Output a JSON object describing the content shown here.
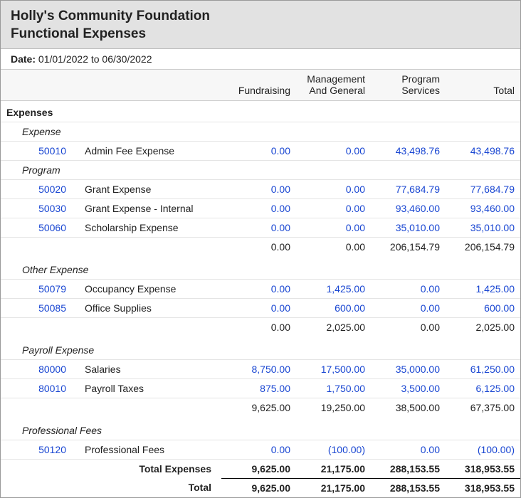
{
  "header": {
    "title1": "Holly's Community Foundation",
    "title2": "Functional Expenses",
    "date_label": "Date:",
    "date_range": "01/01/2022 to 06/30/2022"
  },
  "columns": {
    "fundraising": "Fundraising",
    "mgmt_line1": "Management",
    "mgmt_line2": "And General",
    "program_line1": "Program",
    "program_line2": "Services",
    "total": "Total"
  },
  "section_label": "Expenses",
  "groups": [
    {
      "label": "Expense",
      "rows": [
        {
          "code": "50010",
          "name": "Admin Fee Expense",
          "v": [
            "0.00",
            "0.00",
            "43,498.76",
            "43,498.76"
          ]
        }
      ],
      "subtotal": null
    },
    {
      "label": "Program",
      "rows": [
        {
          "code": "50020",
          "name": "Grant Expense",
          "v": [
            "0.00",
            "0.00",
            "77,684.79",
            "77,684.79"
          ]
        },
        {
          "code": "50030",
          "name": "Grant Expense - Internal",
          "v": [
            "0.00",
            "0.00",
            "93,460.00",
            "93,460.00"
          ]
        },
        {
          "code": "50060",
          "name": "Scholarship Expense",
          "v": [
            "0.00",
            "0.00",
            "35,010.00",
            "35,010.00"
          ]
        }
      ],
      "subtotal": [
        "0.00",
        "0.00",
        "206,154.79",
        "206,154.79"
      ]
    },
    {
      "label": "Other Expense",
      "rows": [
        {
          "code": "50079",
          "name": "Occupancy Expense",
          "v": [
            "0.00",
            "1,425.00",
            "0.00",
            "1,425.00"
          ]
        },
        {
          "code": "50085",
          "name": "Office Supplies",
          "v": [
            "0.00",
            "600.00",
            "0.00",
            "600.00"
          ]
        }
      ],
      "subtotal": [
        "0.00",
        "2,025.00",
        "0.00",
        "2,025.00"
      ]
    },
    {
      "label": "Payroll Expense",
      "rows": [
        {
          "code": "80000",
          "name": "Salaries",
          "v": [
            "8,750.00",
            "17,500.00",
            "35,000.00",
            "61,250.00"
          ]
        },
        {
          "code": "80010",
          "name": "Payroll Taxes",
          "v": [
            "875.00",
            "1,750.00",
            "3,500.00",
            "6,125.00"
          ]
        }
      ],
      "subtotal": [
        "9,625.00",
        "19,250.00",
        "38,500.00",
        "67,375.00"
      ]
    },
    {
      "label": "Professional Fees",
      "rows": [
        {
          "code": "50120",
          "name": "Professional Fees",
          "v": [
            "0.00",
            "(100.00)",
            "0.00",
            "(100.00)"
          ]
        }
      ],
      "subtotal": null
    }
  ],
  "totals": {
    "total_expenses_label": "Total Expenses",
    "total_label": "Total",
    "total_expenses": [
      "9,625.00",
      "21,175.00",
      "288,153.55",
      "318,953.55"
    ],
    "total": [
      "9,625.00",
      "21,175.00",
      "288,153.55",
      "318,953.55"
    ]
  }
}
